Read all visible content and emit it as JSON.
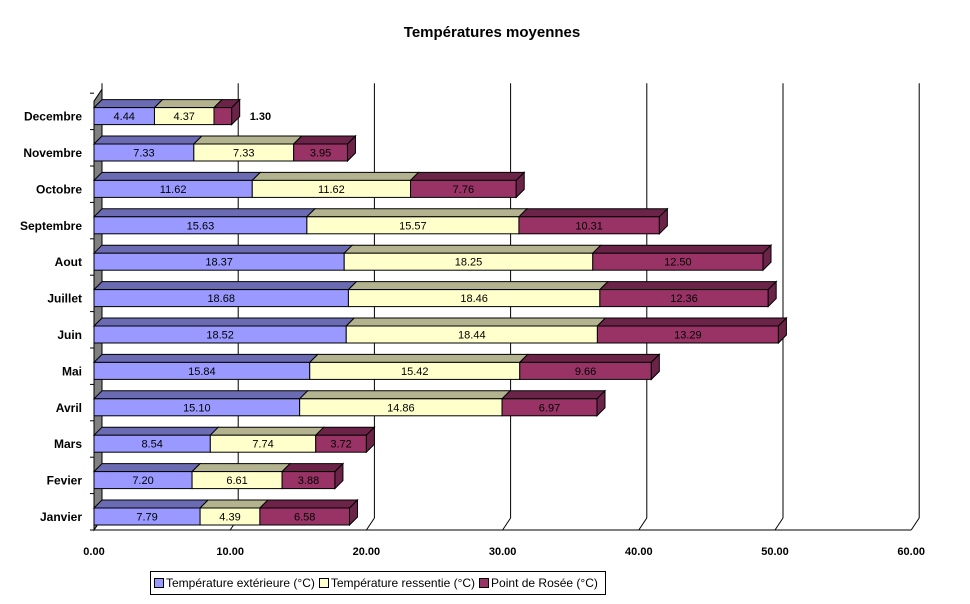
{
  "chart_data": {
    "type": "bar",
    "orientation": "horizontal",
    "stacked": true,
    "title": "Températures moyennes",
    "categories": [
      "Janvier",
      "Fevier",
      "Mars",
      "Avril",
      "Mai",
      "Juin",
      "Juillet",
      "Aout",
      "Septembre",
      "Octobre",
      "Novembre",
      "Decembre"
    ],
    "series": [
      {
        "name": "Température extérieure (°C)",
        "color": "#9999ff",
        "top_color": "#6b6bb3",
        "values": [
          7.79,
          7.2,
          8.54,
          15.1,
          15.84,
          18.52,
          18.68,
          18.37,
          15.63,
          11.62,
          7.33,
          4.44
        ],
        "labels": [
          "7.79",
          "7.20",
          "8.54",
          "15.10",
          "15.84",
          "18.52",
          "18.68",
          "18.37",
          "15.63",
          "11.62",
          "7.33",
          "4.44"
        ]
      },
      {
        "name": "Température ressentie (°C)",
        "color": "#ffffcc",
        "top_color": "#b3b38f",
        "values": [
          4.39,
          6.61,
          7.74,
          14.86,
          15.42,
          18.44,
          18.46,
          18.25,
          15.57,
          11.62,
          7.33,
          4.37
        ],
        "labels": [
          "4.39",
          "6.61",
          "7.74",
          "14.86",
          "15.42",
          "18.44",
          "18.46",
          "18.25",
          "15.57",
          "11.62",
          "7.33",
          "4.37"
        ]
      },
      {
        "name": "Point de Rosée (°C)",
        "color": "#993366",
        "top_color": "#6b2447",
        "values": [
          6.58,
          3.88,
          3.72,
          6.97,
          9.66,
          13.29,
          12.36,
          12.5,
          10.31,
          7.76,
          3.95,
          1.3
        ],
        "labels": [
          "6.58",
          "3.88",
          "3.72",
          "6.97",
          "9.66",
          "13.29",
          "12.36",
          "12.50",
          "10.31",
          "7.76",
          "3.95",
          "1.30"
        ]
      }
    ],
    "x_ticks": [
      "0.00",
      "10.00",
      "20.00",
      "30.00",
      "40.00",
      "50.00",
      "60.00"
    ],
    "xlim": [
      0,
      60
    ],
    "grid": true,
    "legend_position": "bottom"
  }
}
